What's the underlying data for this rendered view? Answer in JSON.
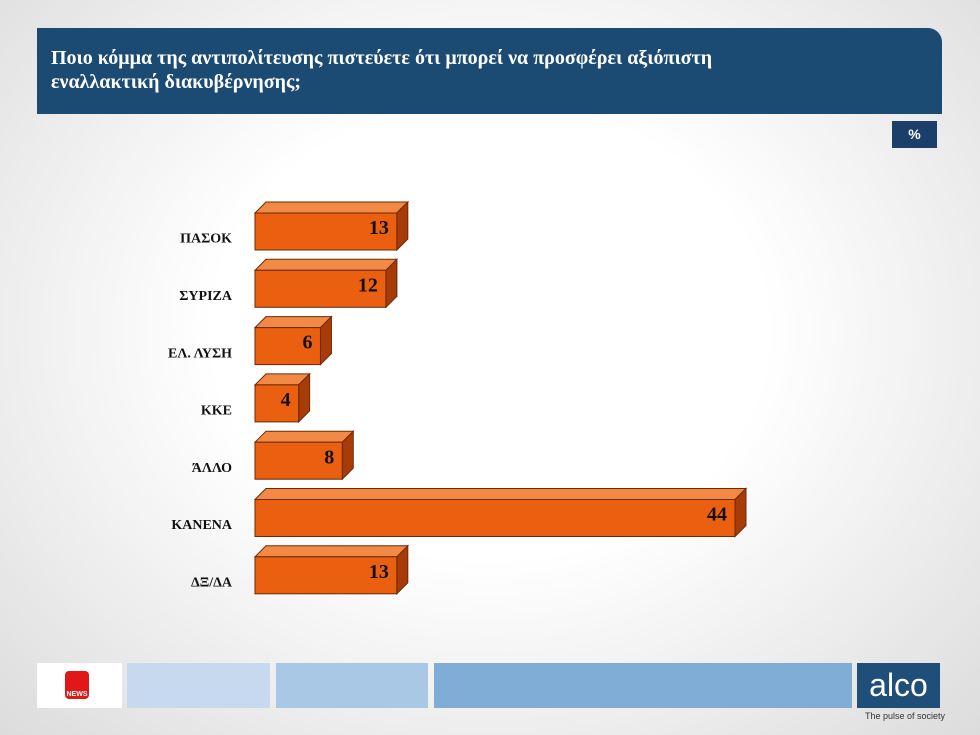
{
  "chart_data": {
    "type": "bar3d",
    "title": "Ποιο κόμμα της αντιπολίτευσης πιστεύετε ότι μπορεί να προσφέρει αξιόπιστη εναλλακτική διακυβέρνησης;",
    "unit_badge": "%",
    "categories": [
      "ΠΑΣΟΚ",
      "ΣΥΡΙΖΑ",
      "ΕΛ. ΛΥΣΗ",
      "ΚΚΕ",
      "ΆΛΛΟ",
      "ΚΑΝΕΝΑ",
      "ΔΞ/ΔΑ"
    ],
    "values": [
      13,
      12,
      6,
      4,
      8,
      44,
      13
    ],
    "color": "#ea5f10"
  },
  "footer": {
    "brand": "alco",
    "tagline": "The pulse of society",
    "logo_text": "NEWS"
  }
}
